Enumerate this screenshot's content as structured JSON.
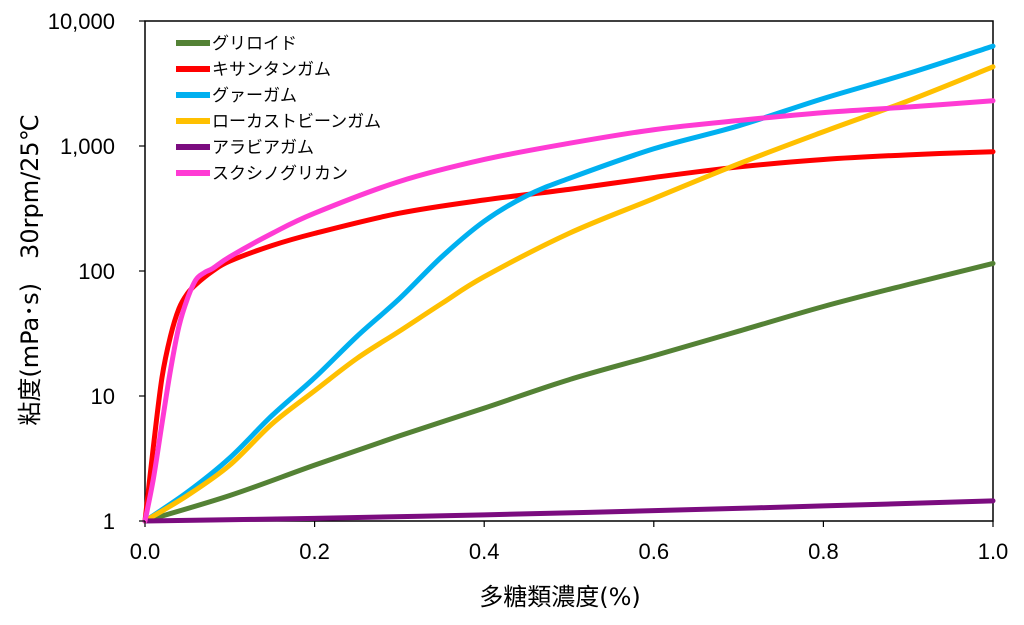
{
  "chart_data": {
    "type": "line",
    "xlabel": "多糖類濃度(%)",
    "ylabel": "粘度(mPa･s)　30rpm/25℃",
    "x_scale": "linear",
    "y_scale": "log",
    "xlim": [
      0.0,
      1.0
    ],
    "ylim": [
      1,
      10000
    ],
    "x_ticks": [
      0.0,
      0.2,
      0.4,
      0.6,
      0.8,
      1.0
    ],
    "x_tick_labels": [
      "0.0",
      "0.2",
      "0.4",
      "0.6",
      "0.8",
      "1.0"
    ],
    "y_ticks": [
      1,
      10,
      100,
      1000,
      10000
    ],
    "y_tick_labels": [
      "1",
      "10",
      "100",
      "1,000",
      "10,000"
    ],
    "grid": false,
    "legend_position": "top-left",
    "series": [
      {
        "name": "グリロイド",
        "color": "#548235",
        "x": [
          0.0,
          0.1,
          0.2,
          0.3,
          0.4,
          0.5,
          0.6,
          0.7,
          0.8,
          0.9,
          1.0
        ],
        "y": [
          1,
          1.6,
          2.8,
          4.8,
          8,
          13.5,
          21,
          33,
          52,
          78,
          115
        ]
      },
      {
        "name": "キサンタンガム",
        "color": "#ff0000",
        "x": [
          0.0,
          0.01,
          0.02,
          0.03,
          0.04,
          0.05,
          0.06,
          0.08,
          0.1,
          0.15,
          0.2,
          0.3,
          0.4,
          0.5,
          0.6,
          0.7,
          0.8,
          0.9,
          1.0
        ],
        "y": [
          1,
          4,
          14,
          30,
          50,
          66,
          78,
          100,
          120,
          160,
          200,
          290,
          370,
          450,
          560,
          680,
          780,
          850,
          900
        ]
      },
      {
        "name": "グァーガム",
        "color": "#00b0f0",
        "x": [
          0.0,
          0.05,
          0.1,
          0.15,
          0.2,
          0.25,
          0.3,
          0.35,
          0.4,
          0.45,
          0.5,
          0.6,
          0.7,
          0.8,
          0.9,
          1.0
        ],
        "y": [
          1,
          1.7,
          3.2,
          7,
          14,
          30,
          60,
          130,
          250,
          400,
          550,
          950,
          1450,
          2400,
          3800,
          6300
        ]
      },
      {
        "name": "ローカストビーンガム",
        "color": "#ffc000",
        "x": [
          0.0,
          0.05,
          0.1,
          0.15,
          0.2,
          0.25,
          0.3,
          0.35,
          0.4,
          0.5,
          0.6,
          0.7,
          0.8,
          0.9,
          1.0
        ],
        "y": [
          1,
          1.6,
          2.8,
          6,
          11,
          20,
          33,
          55,
          90,
          200,
          380,
          720,
          1300,
          2300,
          4300
        ]
      },
      {
        "name": "アラビアガム",
        "color": "#7b0c7f",
        "x": [
          0.0,
          0.2,
          0.4,
          0.6,
          0.8,
          1.0
        ],
        "y": [
          1,
          1.05,
          1.12,
          1.21,
          1.32,
          1.45
        ]
      },
      {
        "name": "スクシノグリカン",
        "color": "#ff3bd4",
        "x": [
          0.0,
          0.01,
          0.02,
          0.03,
          0.04,
          0.05,
          0.06,
          0.07,
          0.08,
          0.1,
          0.15,
          0.2,
          0.3,
          0.4,
          0.5,
          0.6,
          0.7,
          0.8,
          0.9,
          1.0
        ],
        "y": [
          1,
          2.2,
          6,
          16,
          36,
          60,
          85,
          97,
          105,
          130,
          200,
          290,
          520,
          780,
          1050,
          1350,
          1600,
          1850,
          2050,
          2300
        ]
      }
    ]
  }
}
